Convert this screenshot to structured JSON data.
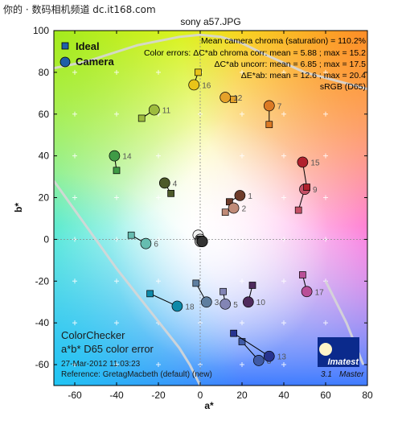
{
  "watermark": "你的 · 数码相机频道 dc.it168.com",
  "chart_data": {
    "type": "scatter",
    "title": "sony a57.JPG",
    "xlabel": "a*",
    "ylabel": "b*",
    "xlim": [
      -70,
      80
    ],
    "ylim": [
      -70,
      100
    ],
    "xticks": [
      -60,
      -40,
      -20,
      0,
      20,
      40,
      60,
      80
    ],
    "yticks": [
      -60,
      -40,
      -20,
      0,
      20,
      40,
      60,
      80,
      100
    ],
    "grid": true,
    "legend": {
      "position": "top-left",
      "items": [
        {
          "name": "Ideal",
          "marker": "square",
          "color": "#1f5fa8"
        },
        {
          "name": "Camera",
          "marker": "circle",
          "color": "#1f5fa8"
        }
      ]
    },
    "stats": [
      "Mean camera chroma (saturation) = 110.2%",
      "Color errors:  ΔC*ab chroma corr:  mean = 5.88 ;  max = 15.2",
      "ΔC*ab uncorr:  mean = 6.85 ;  max = 17.5",
      "ΔE*ab:  mean = 12.6 ;  max = 20.4",
      "sRGB (D65)"
    ],
    "bottom_text": {
      "heading1": "ColorChecker",
      "heading2": "a*b* D65 color error",
      "timestamp": "27-Mar-2012 11:03:23",
      "reference": "Reference: GretagMacbeth (default) (new)"
    },
    "logo": {
      "brand": "Imatest",
      "version": "3.1",
      "edition": "Master"
    },
    "patches": [
      {
        "label": "1",
        "ideal": [
          14,
          18
        ],
        "camera": [
          19,
          21
        ],
        "color": "#6e3b2a"
      },
      {
        "label": "2",
        "ideal": [
          12,
          13
        ],
        "camera": [
          16,
          15
        ],
        "color": "#c08b78"
      },
      {
        "label": "3",
        "ideal": [
          -2,
          -21
        ],
        "camera": [
          3,
          -30
        ],
        "color": "#5f7fa0"
      },
      {
        "label": "4",
        "ideal": [
          -14,
          22
        ],
        "camera": [
          -17,
          27
        ],
        "color": "#4d5a2a"
      },
      {
        "label": "5",
        "ideal": [
          11,
          -25
        ],
        "camera": [
          12,
          -31
        ],
        "color": "#8385b5"
      },
      {
        "label": "6",
        "ideal": [
          -33,
          2
        ],
        "camera": [
          -26,
          -2
        ],
        "color": "#66bdb0"
      },
      {
        "label": "7",
        "ideal": [
          33,
          55
        ],
        "camera": [
          33,
          64
        ],
        "color": "#db7a25"
      },
      {
        "label": "8",
        "ideal": [
          20,
          -49
        ],
        "camera": [
          28,
          -58
        ],
        "color": "#3f5aa6"
      },
      {
        "label": "9",
        "ideal": [
          47,
          14
        ],
        "camera": [
          50,
          24
        ],
        "color": "#c45066"
      },
      {
        "label": "10",
        "ideal": [
          25,
          -22
        ],
        "camera": [
          23,
          -30
        ],
        "color": "#4f2a5c"
      },
      {
        "label": "11",
        "ideal": [
          -28,
          58
        ],
        "camera": [
          -22,
          62
        ],
        "color": "#9dbb3e"
      },
      {
        "label": "12",
        "ideal": [
          16,
          67
        ],
        "camera": [
          12,
          68
        ],
        "color": "#e5a22a"
      },
      {
        "label": "13",
        "ideal": [
          16,
          -45
        ],
        "camera": [
          33,
          -56
        ],
        "color": "#27338f"
      },
      {
        "label": "14",
        "ideal": [
          -40,
          33
        ],
        "camera": [
          -41,
          40
        ],
        "color": "#3f9b46"
      },
      {
        "label": "15",
        "ideal": [
          51,
          25
        ],
        "camera": [
          49,
          37
        ],
        "color": "#b0222e"
      },
      {
        "label": "16",
        "ideal": [
          -1,
          80
        ],
        "camera": [
          -3,
          74
        ],
        "color": "#e8c419"
      },
      {
        "label": "17",
        "ideal": [
          49,
          -17
        ],
        "camera": [
          51,
          -25
        ],
        "color": "#b94f97"
      },
      {
        "label": "18",
        "ideal": [
          -24,
          -26
        ],
        "camera": [
          -11,
          -32
        ],
        "color": "#0d89a8"
      },
      {
        "label": "",
        "ideal": [
          0,
          0
        ],
        "camera": [
          -1,
          2
        ],
        "color": "#f2f2f2"
      },
      {
        "label": "",
        "ideal": [
          0,
          0
        ],
        "camera": [
          0,
          0
        ],
        "color": "#c8c8c8"
      },
      {
        "label": "",
        "ideal": [
          0,
          0
        ],
        "camera": [
          0,
          -1
        ],
        "color": "#a0a0a0"
      },
      {
        "label": "",
        "ideal": [
          0,
          0
        ],
        "camera": [
          1,
          -1
        ],
        "color": "#7a7a7a"
      },
      {
        "label": "",
        "ideal": [
          0,
          0
        ],
        "camera": [
          1,
          -1
        ],
        "color": "#555555"
      },
      {
        "label": "",
        "ideal": [
          0,
          0
        ],
        "camera": [
          1,
          -1
        ],
        "color": "#333333"
      }
    ],
    "gamut_boundary": [
      [
        -70,
        28
      ],
      [
        -60,
        14
      ],
      [
        -40,
        -14
      ],
      [
        -25,
        -33
      ],
      [
        -10,
        -52
      ],
      [
        -5,
        -60
      ],
      [
        0,
        -70
      ]
    ],
    "gamut_boundary_top": [
      [
        -70,
        82
      ],
      [
        -55,
        85
      ],
      [
        -30,
        93
      ],
      [
        -10,
        97
      ],
      [
        0,
        98
      ],
      [
        10,
        97
      ],
      [
        20,
        94
      ],
      [
        30,
        89
      ],
      [
        50,
        80
      ],
      [
        80,
        72
      ]
    ],
    "gamut_boundary_right": [
      [
        60,
        -20
      ],
      [
        70,
        -40
      ],
      [
        78,
        -60
      ]
    ]
  }
}
